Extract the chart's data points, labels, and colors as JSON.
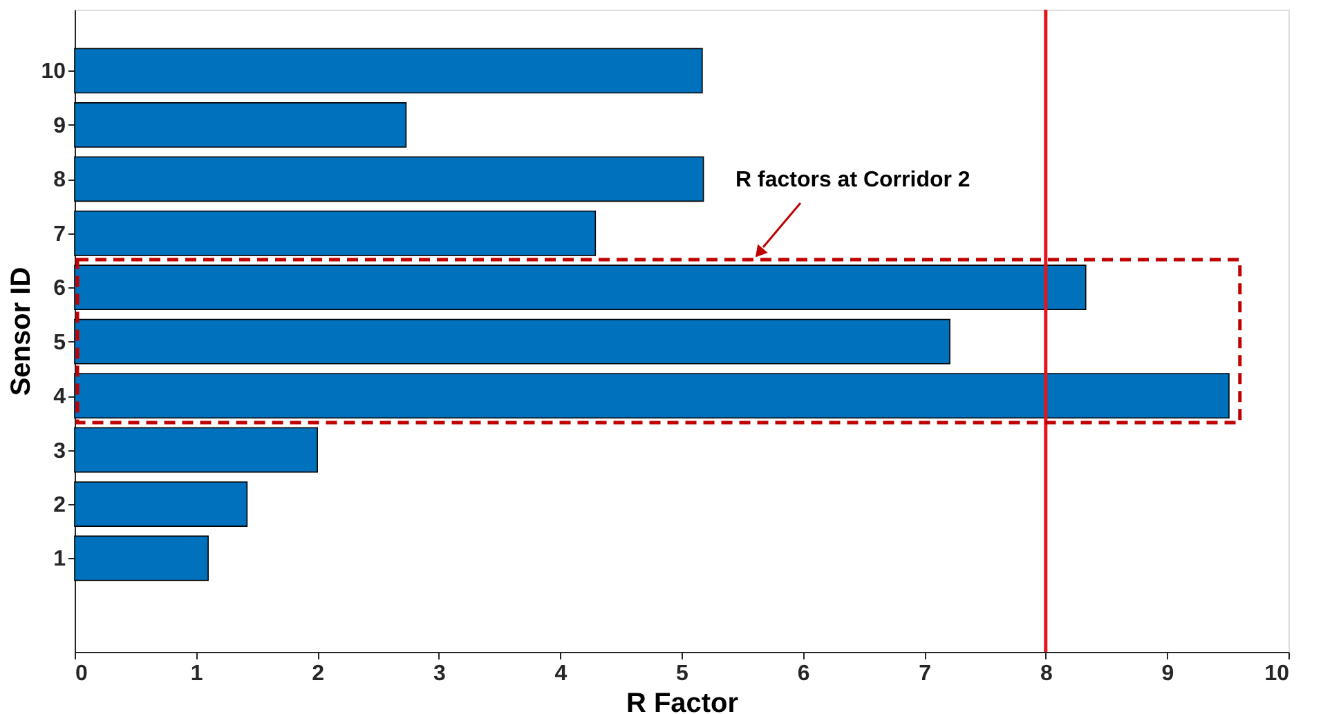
{
  "chart_data": {
    "type": "bar",
    "orientation": "horizontal",
    "xlabel": "R Factor",
    "ylabel": "Sensor ID",
    "categories": [
      "10",
      "9",
      "8",
      "7",
      "6",
      "5",
      "4",
      "3",
      "2",
      "1"
    ],
    "values": [
      5.17,
      2.73,
      5.18,
      4.29,
      8.33,
      7.21,
      9.51,
      2.0,
      1.42,
      1.1
    ],
    "color": "#0072bd",
    "xlim": [
      0,
      10
    ],
    "xticks": [
      0,
      1,
      2,
      3,
      4,
      5,
      6,
      7,
      8,
      9,
      10
    ],
    "grid": false,
    "ref_lines": [
      {
        "axis": "x",
        "value": 8,
        "color": "#e8141c",
        "line_style": "solid"
      }
    ],
    "annotations": [
      "R factors at Corridor 2"
    ]
  }
}
